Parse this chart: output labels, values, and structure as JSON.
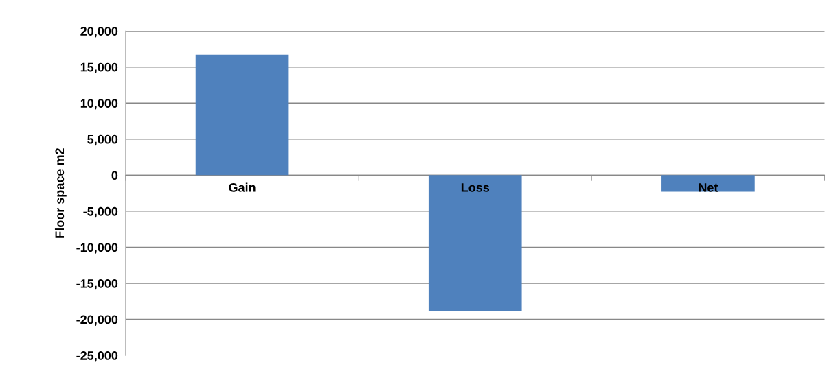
{
  "chart_data": {
    "type": "bar",
    "ylabel": "Floor space m2",
    "categories": [
      "Gain",
      "Loss",
      "Net"
    ],
    "values": [
      16700,
      -18900,
      -2300
    ],
    "color": "#4f81bd",
    "ylim": [
      -25000,
      20000
    ],
    "yticks": [
      {
        "value": -25000,
        "label": "-25,000"
      },
      {
        "value": -20000,
        "label": "-20,000"
      },
      {
        "value": -15000,
        "label": "-15,000"
      },
      {
        "value": -10000,
        "label": "-10,000"
      },
      {
        "value": -5000,
        "label": "-5,000"
      },
      {
        "value": 0,
        "label": "0"
      },
      {
        "value": 5000,
        "label": "5,000"
      },
      {
        "value": 10000,
        "label": "10,000"
      },
      {
        "value": 15000,
        "label": "15,000"
      },
      {
        "value": 20000,
        "label": "20,000"
      }
    ],
    "grid": "y",
    "legend": false
  }
}
